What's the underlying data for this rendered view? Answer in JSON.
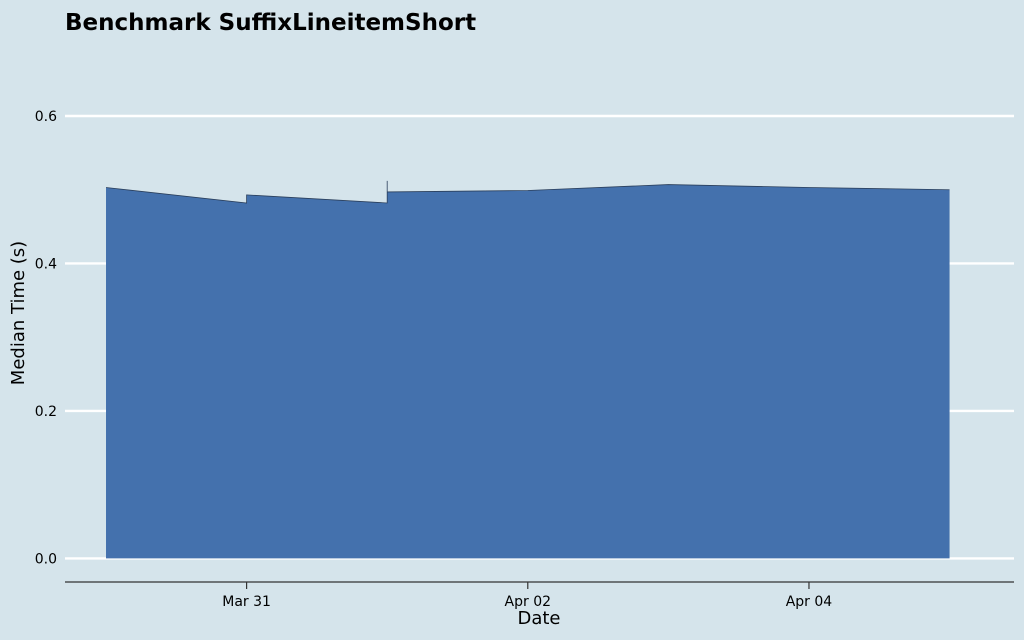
{
  "chart_data": {
    "type": "area",
    "title": "Benchmark SuffixLineitemShort",
    "xlabel": "Date",
    "ylabel": "Median Time (s)",
    "x_ticks": [
      {
        "date": "2024-03-31",
        "label": "Mar 31"
      },
      {
        "date": "2024-04-02",
        "label": "Apr 02"
      },
      {
        "date": "2024-04-04",
        "label": "Apr 04"
      }
    ],
    "y_ticks": [
      {
        "value": 0.0,
        "label": "0.0"
      },
      {
        "value": 0.2,
        "label": "0.2"
      },
      {
        "value": 0.4,
        "label": "0.4"
      },
      {
        "value": 0.6,
        "label": "0.6"
      }
    ],
    "xlim": [
      "2024-03-29T17:00",
      "2024-04-05T11:00"
    ],
    "ylim": [
      -0.032,
      0.6
    ],
    "grid": "horizontal",
    "series": [
      {
        "color": "#4471ad",
        "points": [
          {
            "date": "2024-03-30T00:00",
            "y": 0.503
          },
          {
            "date": "2024-03-31T00:00",
            "y": 0.482
          },
          {
            "date": "2024-03-31T00:00",
            "y": 0.493
          },
          {
            "date": "2024-04-01T00:00",
            "y": 0.482
          },
          {
            "date": "2024-04-01T00:00",
            "y": 0.512
          },
          {
            "date": "2024-04-01T00:00",
            "y": 0.497
          },
          {
            "date": "2024-04-02T00:00",
            "y": 0.499
          },
          {
            "date": "2024-04-03T00:00",
            "y": 0.507
          },
          {
            "date": "2024-04-04T00:00",
            "y": 0.503
          },
          {
            "date": "2024-04-05T00:00",
            "y": 0.5
          }
        ]
      }
    ]
  }
}
